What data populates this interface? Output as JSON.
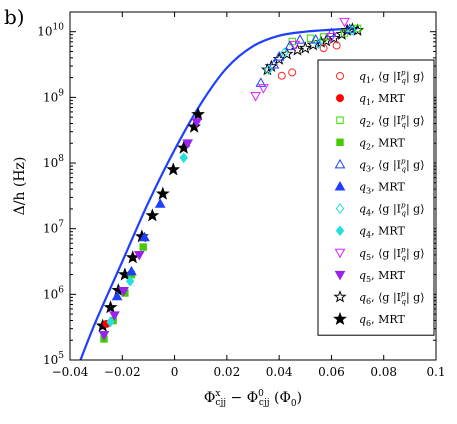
{
  "panel_label": "b)",
  "chart_data": {
    "type": "scatter",
    "xlabel": "Φ^x_cjj − Φ^0_cjj (Φ0)",
    "xlabel_parts": {
      "a": "Φ",
      "a_sup": "x",
      "a_sub": "cjj",
      "minus": " − ",
      "b": "Φ",
      "b_sup": "0",
      "b_sub": "cjj",
      "unit": " (Φ",
      "unit_sub": "0",
      "close": ")"
    },
    "ylabel": "Δ/h (Hz)",
    "xlim": [
      -0.04,
      0.1
    ],
    "ylim_log10": [
      5,
      10.3
    ],
    "yscale": "log",
    "x_ticks": [
      -0.04,
      -0.02,
      0,
      0.02,
      0.04,
      0.06,
      0.08,
      0.1
    ],
    "x_tick_labels": [
      "−0.04",
      "−0.02",
      "0",
      "0.02",
      "0.04",
      "0.06",
      "0.08",
      "0.1"
    ],
    "y_ticks_exp": [
      5,
      6,
      7,
      8,
      9,
      10
    ],
    "grid": false,
    "legend_placement": "right",
    "legend": [
      {
        "qubit": "q",
        "sub": "1",
        "method": "⟨g |I",
        "method_tail": "| g⟩",
        "marker": "circle-open",
        "color": "#ff2a2a"
      },
      {
        "qubit": "q",
        "sub": "1",
        "method": "MRT",
        "marker": "circle-filled",
        "color": "#ff0000"
      },
      {
        "qubit": "q",
        "sub": "2",
        "method": "⟨g |I",
        "method_tail": "| g⟩",
        "marker": "square-open",
        "color": "#33dd00"
      },
      {
        "qubit": "q",
        "sub": "2",
        "method": "MRT",
        "marker": "square-filled",
        "color": "#44cc00"
      },
      {
        "qubit": "q",
        "sub": "3",
        "method": "⟨g |I",
        "method_tail": "| g⟩",
        "marker": "triangle-up-open",
        "color": "#1f3fff"
      },
      {
        "qubit": "q",
        "sub": "3",
        "method": "MRT",
        "marker": "triangle-up-filled",
        "color": "#1f3fff"
      },
      {
        "qubit": "q",
        "sub": "4",
        "method": "⟨g |I",
        "method_tail": "| g⟩",
        "marker": "diamond-open",
        "color": "#22e0e0"
      },
      {
        "qubit": "q",
        "sub": "4",
        "method": "MRT",
        "marker": "diamond-filled",
        "color": "#22e0e0"
      },
      {
        "qubit": "q",
        "sub": "5",
        "method": "⟨g |I",
        "method_tail": "| g⟩",
        "marker": "triangle-down-open",
        "color": "#dd22ff"
      },
      {
        "qubit": "q",
        "sub": "5",
        "method": "MRT",
        "marker": "triangle-down-filled",
        "color": "#9922ee"
      },
      {
        "qubit": "q",
        "sub": "6",
        "method": "⟨g |I",
        "method_tail": "| g⟩",
        "marker": "star-open",
        "color": "#000000"
      },
      {
        "qubit": "q",
        "sub": "6",
        "method": "MRT",
        "marker": "star-filled",
        "color": "#000000"
      }
    ],
    "legend_sup": "p",
    "legend_sub": "q",
    "fit_curve": {
      "color": "#1f3fff",
      "points": [
        [
          -0.036,
          5.0
        ],
        [
          -0.03,
          5.6
        ],
        [
          -0.02,
          6.5
        ],
        [
          -0.01,
          7.4
        ],
        [
          0.0,
          8.2
        ],
        [
          0.01,
          8.9
        ],
        [
          0.02,
          9.45
        ],
        [
          0.03,
          9.78
        ],
        [
          0.04,
          9.94
        ],
        [
          0.05,
          10.0
        ],
        [
          0.06,
          10.03
        ],
        [
          0.07,
          10.05
        ]
      ]
    },
    "series": [
      {
        "name": "q6 MRT",
        "marker": "star-filled",
        "color": "#000000",
        "points": [
          [
            -0.0275,
            5.52
          ],
          [
            -0.0245,
            5.8
          ],
          [
            -0.0215,
            6.06
          ],
          [
            -0.019,
            6.3
          ],
          [
            -0.016,
            6.56
          ],
          [
            -0.0125,
            6.88
          ],
          [
            -0.0085,
            7.2
          ],
          [
            -0.0045,
            7.53
          ],
          [
            -0.0005,
            7.9
          ],
          [
            0.0035,
            8.23
          ],
          [
            0.0075,
            8.55
          ],
          [
            0.009,
            8.74
          ]
        ]
      },
      {
        "name": "q6 open",
        "marker": "star-open",
        "color": "#000000",
        "points": [
          [
            0.0355,
            9.42
          ],
          [
            0.037,
            9.47
          ],
          [
            0.04,
            9.58
          ],
          [
            0.043,
            9.66
          ],
          [
            0.047,
            9.72
          ],
          [
            0.05,
            9.75
          ],
          [
            0.053,
            9.8
          ],
          [
            0.056,
            9.84
          ],
          [
            0.058,
            9.86
          ],
          [
            0.061,
            9.9
          ],
          [
            0.064,
            9.96
          ],
          [
            0.066,
            10.02
          ],
          [
            0.068,
            10.04
          ],
          [
            0.07,
            10.02
          ]
        ]
      },
      {
        "name": "q1 open",
        "marker": "circle-open",
        "color": "#ff2a2a",
        "points": [
          [
            0.041,
            9.33
          ],
          [
            0.045,
            9.38
          ],
          [
            0.057,
            9.75
          ],
          [
            0.062,
            9.79
          ]
        ]
      },
      {
        "name": "q1 MRT",
        "marker": "circle-filled",
        "color": "#ff0000",
        "points": [
          [
            -0.026,
            5.55
          ]
        ]
      },
      {
        "name": "q2 open",
        "marker": "square-open",
        "color": "#33dd00",
        "points": [
          [
            0.045,
            9.85
          ],
          [
            0.052,
            9.9
          ],
          [
            0.057,
            9.92
          ],
          [
            0.065,
            9.98
          ],
          [
            0.07,
            10.05
          ]
        ]
      },
      {
        "name": "q2 MRT",
        "marker": "square-filled",
        "color": "#44cc00",
        "points": [
          [
            -0.027,
            5.32
          ],
          [
            -0.0235,
            5.6
          ],
          [
            -0.019,
            6.02
          ],
          [
            -0.0165,
            6.3
          ],
          [
            -0.012,
            6.72
          ]
        ]
      },
      {
        "name": "q3 open",
        "marker": "triangle-up-open",
        "color": "#1f3fff",
        "points": [
          [
            0.033,
            9.22
          ],
          [
            0.038,
            9.5
          ],
          [
            0.04,
            9.62
          ],
          [
            0.044,
            9.78
          ],
          [
            0.048,
            9.88
          ],
          [
            0.054,
            9.88
          ],
          [
            0.06,
            9.98
          ],
          [
            0.067,
            10.04
          ]
        ]
      },
      {
        "name": "q3 MRT",
        "marker": "triangle-up-filled",
        "color": "#1f3fff",
        "points": [
          [
            -0.022,
            5.97
          ],
          [
            -0.0165,
            6.35
          ],
          [
            -0.0115,
            6.87
          ],
          [
            -0.0055,
            7.38
          ]
        ]
      },
      {
        "name": "q4 open",
        "marker": "diamond-open",
        "color": "#22e0e0",
        "points": [
          [
            0.036,
            9.42
          ],
          [
            0.042,
            9.68
          ],
          [
            0.055,
            9.82
          ],
          [
            0.068,
            10.02
          ]
        ]
      },
      {
        "name": "q4 MRT",
        "marker": "diamond-filled",
        "color": "#22e0e0",
        "points": [
          [
            -0.0245,
            5.58
          ],
          [
            -0.017,
            6.2
          ],
          [
            0.0035,
            8.08
          ]
        ]
      },
      {
        "name": "q5 open",
        "marker": "triangle-down-open",
        "color": "#dd22ff",
        "points": [
          [
            0.031,
            9.02
          ],
          [
            0.034,
            9.14
          ],
          [
            0.046,
            9.8
          ],
          [
            0.06,
            9.92
          ],
          [
            0.065,
            10.15
          ]
        ]
      },
      {
        "name": "q5 MRT",
        "marker": "triangle-down-filled",
        "color": "#9922ee",
        "points": [
          [
            -0.027,
            5.38
          ],
          [
            -0.023,
            5.68
          ],
          [
            -0.0195,
            6.05
          ],
          [
            -0.0135,
            6.6
          ],
          [
            0.005,
            8.3
          ],
          [
            0.0085,
            8.62
          ]
        ]
      }
    ]
  }
}
